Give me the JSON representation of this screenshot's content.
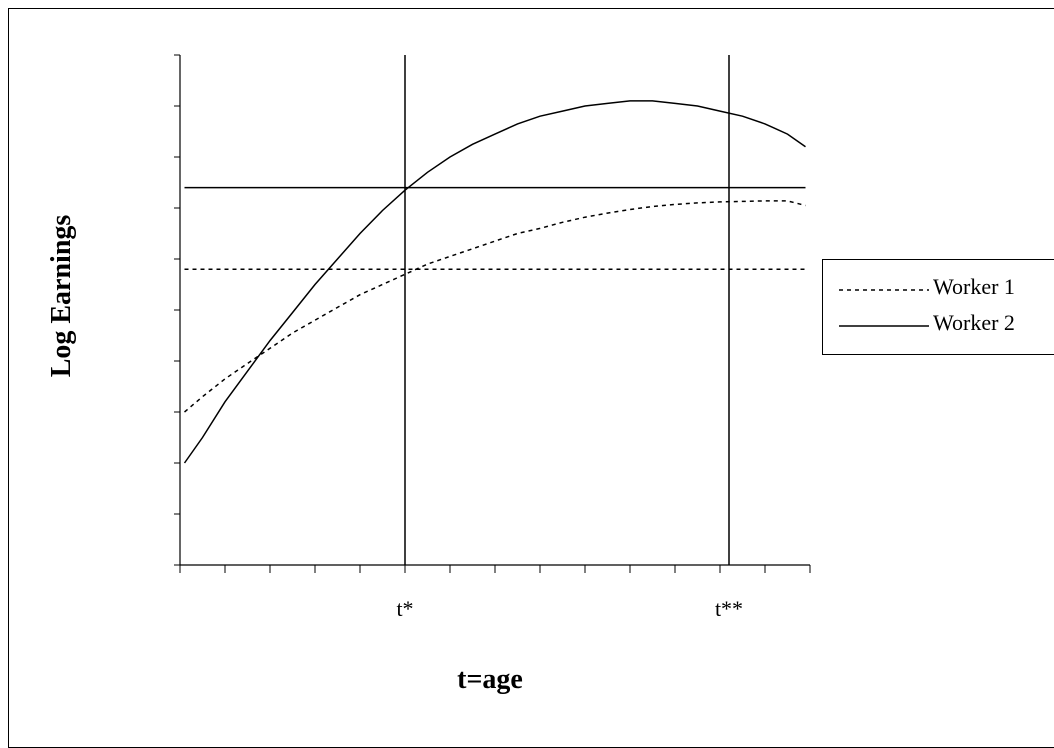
{
  "chart_data": {
    "type": "line",
    "xlabel": "t=age",
    "ylabel": "Log Earnings",
    "xlim": [
      0,
      14
    ],
    "ylim": [
      0,
      10
    ],
    "grid": false,
    "legend_position": "right",
    "x_annotations": [
      {
        "x": 5,
        "label": "t*"
      },
      {
        "x": 12.2,
        "label": "t**"
      }
    ],
    "series": [
      {
        "name": "Worker 1",
        "style": "dotted",
        "color": "#000000",
        "x": [
          0.1,
          0.5,
          1,
          1.5,
          2,
          2.5,
          3,
          3.5,
          4,
          4.5,
          5,
          5.5,
          6,
          6.5,
          7,
          7.5,
          8,
          8.5,
          9,
          9.5,
          10,
          10.5,
          11,
          11.5,
          12,
          12.5,
          13,
          13.5,
          13.9
        ],
        "y": [
          3.0,
          3.3,
          3.65,
          3.95,
          4.25,
          4.55,
          4.8,
          5.05,
          5.3,
          5.5,
          5.7,
          5.9,
          6.05,
          6.2,
          6.35,
          6.5,
          6.6,
          6.72,
          6.82,
          6.9,
          6.97,
          7.03,
          7.07,
          7.1,
          7.12,
          7.13,
          7.14,
          7.14,
          7.05
        ]
      },
      {
        "name": "Worker 2",
        "style": "solid",
        "color": "#000000",
        "x": [
          0.1,
          0.5,
          1,
          1.5,
          2,
          2.5,
          3,
          3.5,
          4,
          4.5,
          5,
          5.5,
          6,
          6.5,
          7,
          7.5,
          8,
          8.5,
          9,
          9.5,
          10,
          10.5,
          11,
          11.5,
          12,
          12.5,
          13,
          13.5,
          13.9
        ],
        "y": [
          2.0,
          2.5,
          3.2,
          3.8,
          4.4,
          4.95,
          5.5,
          6.0,
          6.5,
          6.95,
          7.35,
          7.7,
          8.0,
          8.25,
          8.45,
          8.65,
          8.8,
          8.9,
          9.0,
          9.05,
          9.1,
          9.1,
          9.05,
          9.0,
          8.9,
          8.8,
          8.65,
          8.45,
          8.2
        ]
      },
      {
        "name": "",
        "style": "dotted",
        "color": "#000000",
        "x": [
          0.1,
          13.9
        ],
        "y": [
          5.8,
          5.8
        ]
      },
      {
        "name": "",
        "style": "solid",
        "color": "#000000",
        "x": [
          0.1,
          13.9
        ],
        "y": [
          7.4,
          7.4
        ]
      }
    ]
  },
  "legend": {
    "items": [
      {
        "label": "Worker 1",
        "style": "dotted"
      },
      {
        "label": "Worker 2",
        "style": "solid"
      }
    ]
  }
}
